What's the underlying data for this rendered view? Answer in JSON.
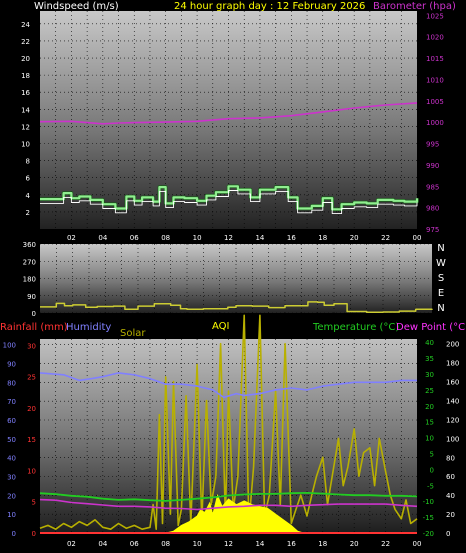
{
  "title": "24 hour graph day : 12 February 2026",
  "colors": {
    "wind": "#90ee90",
    "baro": "#cc33cc",
    "dir": "#cccc33",
    "hum": "#8080ff",
    "rain": "#ff3333",
    "temp": "#22cc22",
    "dew": "#cc33cc",
    "solar": "#b8b000",
    "aqi": "#ffff00",
    "text_wind": "#ffffff",
    "text_baro": "#cc33cc",
    "text_title": "#ffff00",
    "text_rain": "#ff3333",
    "text_hum": "#8080ff",
    "text_solar": "#b8b000",
    "text_aqi": "#ffff00",
    "text_temp": "#22cc22",
    "text_dew": "#ff33ff"
  },
  "chart_data": [
    {
      "type": "line",
      "xlabel": "",
      "x_ticks": [
        "02",
        "04",
        "06",
        "08",
        "10",
        "12",
        "14",
        "16",
        "18",
        "20",
        "22",
        "00"
      ],
      "y_left_label": "Windspeed (m/s)",
      "y_left_ticks": [
        "2",
        "4",
        "6",
        "8",
        "10",
        "12",
        "14",
        "16",
        "18",
        "20",
        "22",
        "24"
      ],
      "y_left_lim": [
        0,
        25.5
      ],
      "y_right_label": "Barometer (hpa)",
      "y_right_ticks": [
        "975",
        "980",
        "985",
        "990",
        "995",
        "1000",
        "1005",
        "1010",
        "1015",
        "1020",
        "1025"
      ],
      "y_right_lim": [
        975,
        1026
      ],
      "series": [
        {
          "name": "Windspeed (m/s)",
          "x": [
            0,
            1.5,
            2,
            2.5,
            3.2,
            4,
            4.8,
            5.5,
            6,
            6.5,
            7.2,
            7.6,
            8,
            8.5,
            9.2,
            10,
            10.6,
            11.2,
            12,
            12.6,
            13.4,
            14,
            15,
            15.8,
            16.4,
            17.3,
            18,
            18.6,
            19.2,
            20,
            20.8,
            21.5,
            22.5,
            23.2,
            24
          ],
          "y": [
            3.5,
            4.2,
            3.6,
            3.8,
            3.4,
            2.9,
            2.4,
            3.8,
            3.3,
            3.7,
            3.2,
            4.9,
            3.0,
            3.7,
            3.6,
            3.3,
            3.9,
            4.3,
            5.0,
            4.6,
            3.7,
            4.6,
            4.9,
            3.7,
            2.4,
            2.7,
            3.6,
            2.3,
            2.9,
            3.1,
            3.0,
            3.4,
            3.3,
            3.2,
            3.6
          ]
        },
        {
          "name": "Barometer (hpa)",
          "x": [
            0,
            2,
            4,
            5,
            6,
            8,
            10,
            12,
            14,
            16,
            18,
            20,
            22,
            24
          ],
          "y": [
            1000.1,
            1000.2,
            999.6,
            999.8,
            999.9,
            1000.0,
            1000.2,
            1000.8,
            1001.0,
            1001.5,
            1002.4,
            1003.3,
            1004.0,
            1004.5
          ]
        }
      ]
    },
    {
      "type": "line",
      "y_ticks": [
        "0",
        "90",
        "180",
        "270",
        "360"
      ],
      "y_lim": [
        0,
        360
      ],
      "compass": [
        "N",
        "W",
        "S",
        "E",
        "N"
      ],
      "series": [
        {
          "name": "Wind direction",
          "x": [
            0,
            1,
            1.5,
            2,
            2.8,
            3.5,
            4.5,
            5.2,
            6,
            7,
            8,
            8.6,
            9,
            10,
            11,
            11.5,
            12,
            13,
            14,
            15,
            16,
            16.4,
            17,
            17.4,
            18,
            18.8,
            20,
            21,
            22,
            23,
            24
          ],
          "y": [
            32,
            50,
            38,
            42,
            30,
            34,
            36,
            20,
            36,
            48,
            40,
            22,
            20,
            22,
            22,
            30,
            38,
            36,
            28,
            38,
            38,
            58,
            56,
            40,
            48,
            8,
            4,
            5,
            10,
            20,
            22
          ]
        }
      ]
    },
    {
      "type": "line",
      "labels": {
        "rain": "Rainfall (mm)",
        "hum": "Humidity",
        "solar": "Solar",
        "aqi": "AQI",
        "temp": "Temperature (°C)",
        "dew": "Dew Point (°C)"
      },
      "x_ticks": [
        "02",
        "04",
        "06",
        "08",
        "10",
        "12",
        "14",
        "16",
        "18",
        "20",
        "22",
        "00"
      ],
      "hum_ticks": [
        "0",
        "10",
        "20",
        "30",
        "40",
        "50",
        "60",
        "70",
        "80",
        "90",
        "100"
      ],
      "hum_lim": [
        0,
        103
      ],
      "rain_ticks": [
        "0",
        "5",
        "10",
        "15",
        "20",
        "25",
        "30"
      ],
      "rain_lim": [
        0,
        31
      ],
      "temp_ticks": [
        "-20",
        "-15",
        "-10",
        "-5",
        "0",
        "5",
        "10",
        "15",
        "20",
        "25",
        "30",
        "35",
        "40"
      ],
      "temp_lim": [
        -20,
        41
      ],
      "solar_ticks": [
        "0",
        "20",
        "40",
        "60",
        "80",
        "100",
        "120",
        "140",
        "160",
        "180",
        "200"
      ],
      "solar_lim": [
        0,
        205
      ],
      "series": [
        {
          "name": "Humidity",
          "x": [
            0,
            1.5,
            2.5,
            3.3,
            4,
            5,
            6,
            7,
            8,
            9,
            10,
            11,
            11.7,
            12.5,
            13,
            14,
            15,
            16,
            17,
            18,
            19,
            20,
            21,
            22,
            23,
            24
          ],
          "y": [
            85,
            84,
            81,
            82,
            83,
            85,
            84,
            82,
            79,
            79,
            78,
            76,
            72,
            74,
            73,
            74,
            76,
            77,
            76,
            78,
            79,
            80,
            80,
            80,
            81,
            81
          ]
        },
        {
          "name": "Temperature (°C)",
          "x": [
            0,
            1,
            2,
            3,
            4,
            5,
            6,
            7,
            8,
            9,
            10,
            11,
            12,
            13,
            14,
            15,
            16,
            17,
            18,
            19,
            20,
            21,
            22,
            23,
            24
          ],
          "y": [
            -7.5,
            -7.8,
            -8.3,
            -8.6,
            -9.2,
            -9.6,
            -9.4,
            -9.7,
            -9.9,
            -9.6,
            -9.2,
            -8.8,
            -8.2,
            -7.9,
            -7.7,
            -7.7,
            -7.5,
            -7.4,
            -7.6,
            -7.9,
            -8.1,
            -8.1,
            -8.3,
            -8.3,
            -8.5
          ]
        },
        {
          "name": "Dew Point (°C)",
          "x": [
            0,
            1,
            2,
            3,
            4,
            5,
            6,
            7,
            8,
            9,
            10,
            11,
            12,
            13,
            14,
            15,
            16,
            17,
            18,
            19,
            20,
            21,
            22,
            23,
            24
          ],
          "y": [
            -9.5,
            -9.7,
            -10.4,
            -10.8,
            -11.2,
            -11.6,
            -11.6,
            -11.8,
            -12.2,
            -12.3,
            -12.6,
            -12.2,
            -11.8,
            -11.6,
            -11.3,
            -11.3,
            -11.6,
            -11.3,
            -11.1,
            -10.9,
            -10.9,
            -10.9,
            -10.9,
            -11.3,
            -11.6
          ]
        },
        {
          "name": "Rainfall (mm)",
          "x": [
            0,
            24
          ],
          "y": [
            0,
            0
          ]
        },
        {
          "name": "Solar",
          "x": [
            8,
            8.5,
            9,
            9.5,
            10,
            10.2,
            10.5,
            10.8,
            11,
            11.3,
            11.6,
            12,
            12.5,
            13,
            13.5,
            14,
            14.5,
            15,
            15.5,
            16,
            16.4,
            16.8
          ],
          "y": [
            0,
            2,
            8,
            12,
            18,
            24,
            22,
            32,
            20,
            40,
            28,
            36,
            30,
            34,
            30,
            28,
            26,
            20,
            14,
            8,
            2,
            0
          ]
        },
        {
          "name": "AQI",
          "x": [
            0,
            0.5,
            1,
            1.5,
            2,
            2.5,
            3,
            3.5,
            4,
            4.5,
            5,
            5.5,
            6,
            6.5,
            7,
            7.2,
            7.4,
            7.6,
            7.8,
            8,
            8.3,
            8.5,
            8.8,
            9,
            9.3,
            9.6,
            10,
            10.3,
            10.6,
            10.9,
            11.2,
            11.5,
            11.8,
            12,
            12.3,
            12.6,
            13,
            13.3,
            13.6,
            14,
            14.3,
            14.6,
            15,
            15.3,
            15.6,
            16,
            16.3,
            16.6,
            17,
            17.3,
            17.6,
            18,
            18.3,
            18.6,
            19,
            19.3,
            19.6,
            20,
            20.3,
            20.6,
            21,
            21.3,
            21.6,
            22,
            22.3,
            22.6,
            23,
            23.3,
            23.6,
            24
          ],
          "y": [
            5,
            8,
            4,
            10,
            6,
            12,
            8,
            14,
            6,
            4,
            10,
            5,
            8,
            4,
            6,
            30,
            4,
            125,
            10,
            165,
            20,
            160,
            8,
            25,
            145,
            10,
            178,
            12,
            140,
            30,
            60,
            200,
            16,
            150,
            25,
            60,
            230,
            10,
            70,
            230,
            18,
            40,
            150,
            30,
            200,
            10,
            25,
            40,
            18,
            40,
            60,
            80,
            30,
            60,
            100,
            50,
            70,
            110,
            60,
            85,
            90,
            50,
            100,
            65,
            40,
            25,
            15,
            35,
            10,
            15
          ]
        }
      ]
    }
  ]
}
